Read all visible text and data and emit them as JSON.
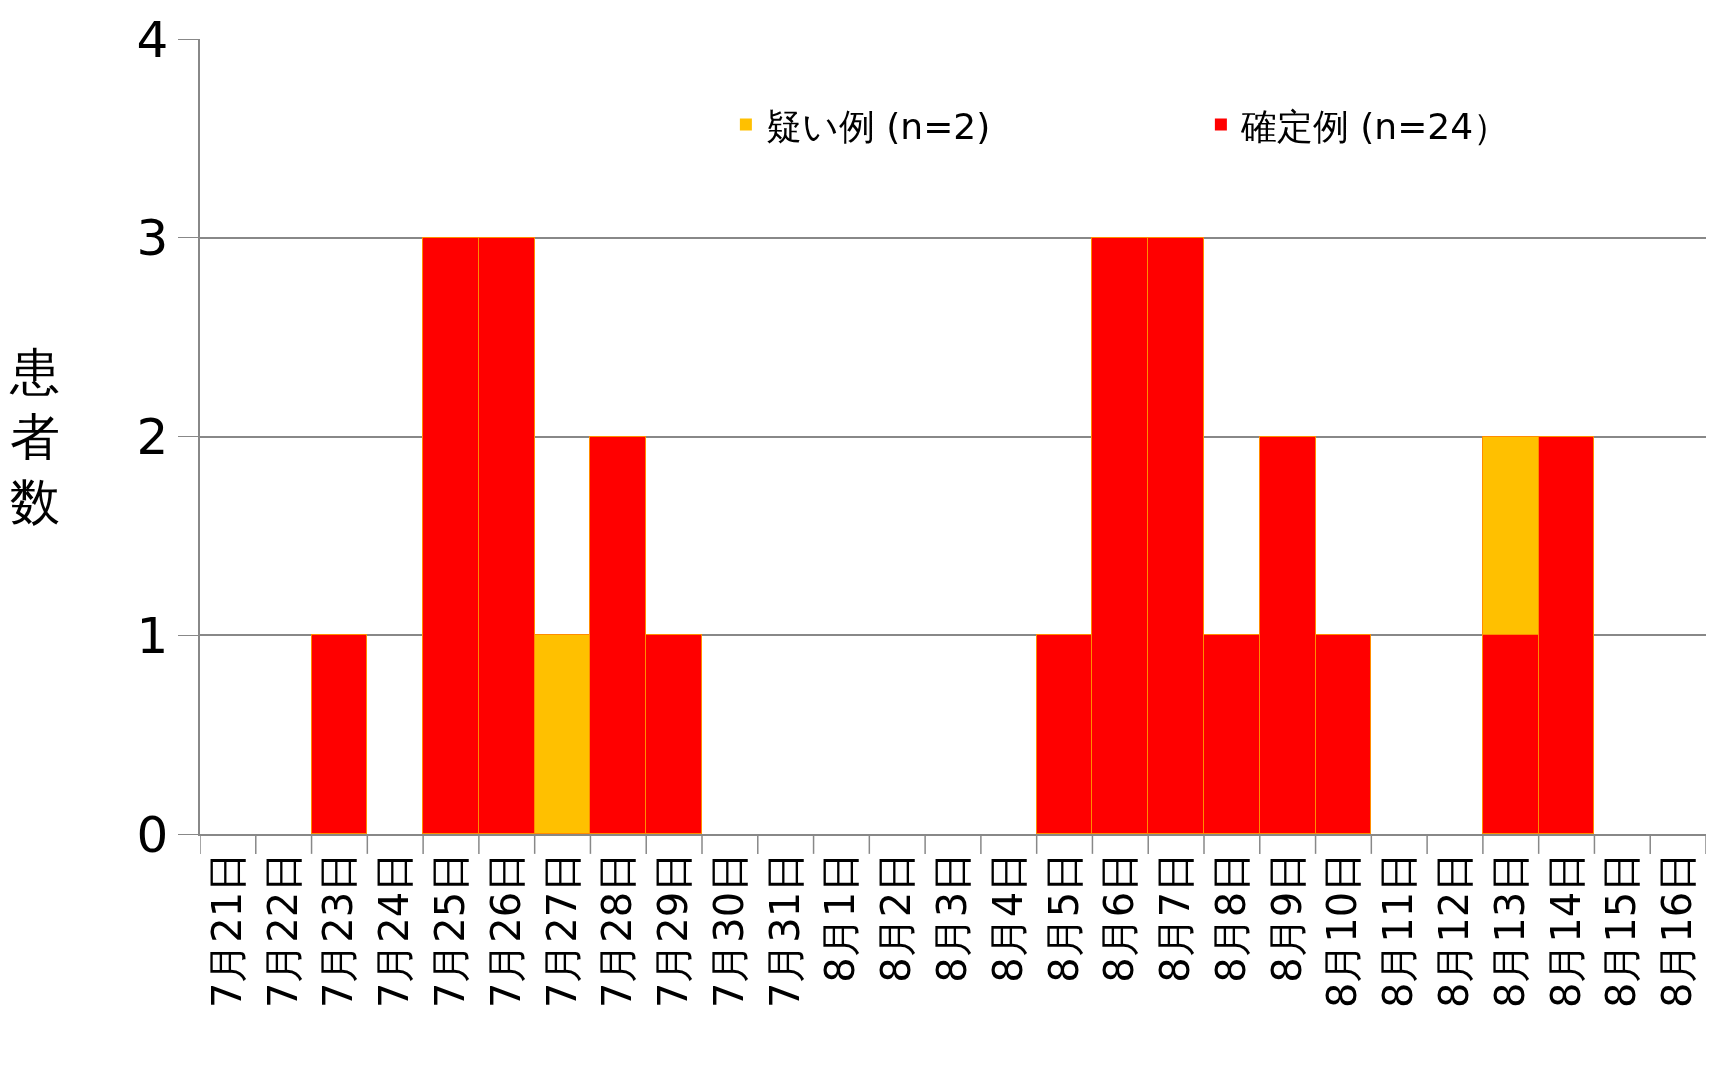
{
  "chart_data": {
    "type": "bar",
    "stacked": true,
    "ylabel": "患者数",
    "categories": [
      "7月21日",
      "7月22日",
      "7月23日",
      "7月24日",
      "7月25日",
      "7月26日",
      "7月27日",
      "7月28日",
      "7月29日",
      "7月30日",
      "7月31日",
      "8月1日",
      "8月2日",
      "8月3日",
      "8月4日",
      "8月5日",
      "8月6日",
      "8月7日",
      "8月8日",
      "8月9日",
      "8月10日",
      "8月11日",
      "8月12日",
      "8月13日",
      "8月14日",
      "8月15日",
      "8月16日"
    ],
    "series": [
      {
        "name": "確定例 (n=24）",
        "color": "#ff0000",
        "values": [
          0,
          0,
          1,
          0,
          3,
          3,
          0,
          2,
          1,
          0,
          0,
          0,
          0,
          0,
          0,
          1,
          3,
          3,
          1,
          2,
          1,
          0,
          0,
          1,
          2,
          0,
          0
        ]
      },
      {
        "name": "疑い例 (n=2)",
        "color": "#ffc000",
        "values": [
          0,
          0,
          0,
          0,
          0,
          0,
          1,
          0,
          0,
          0,
          0,
          0,
          0,
          0,
          0,
          0,
          0,
          0,
          0,
          0,
          0,
          0,
          0,
          1,
          0,
          0,
          0
        ]
      }
    ],
    "ylim": [
      0,
      4
    ],
    "yticks": [
      0,
      1,
      2,
      3,
      4
    ],
    "grid": "y",
    "legend": "top right"
  }
}
